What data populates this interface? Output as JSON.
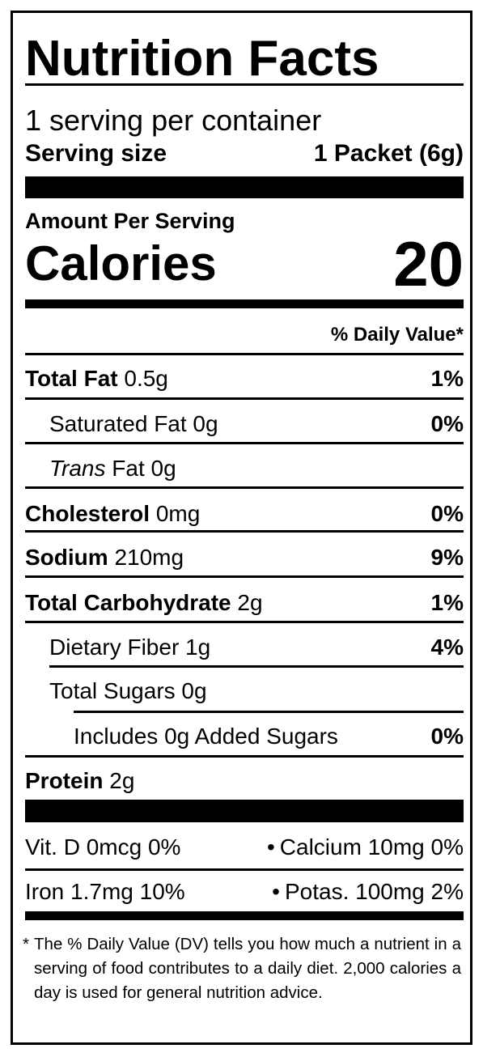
{
  "title": "Nutrition Facts",
  "servings": "1 serving per container",
  "serving_size": {
    "label": "Serving size",
    "value": "1 Packet (6g)"
  },
  "amount_per_serving": "Amount Per Serving",
  "calories": {
    "label": "Calories",
    "value": 20
  },
  "daily_value_header": "% Daily Value*",
  "nutrients": [
    {
      "name": "Total Fat",
      "amount": "0.5g",
      "dv": "1%"
    },
    {
      "name": "Saturated Fat 0g",
      "dv": "0%"
    },
    {
      "name_italic": "Trans",
      "name": "Fat 0g"
    },
    {
      "name": "Cholesterol",
      "amount": "0mg",
      "dv": "0%"
    },
    {
      "name": "Sodium",
      "amount": "210mg",
      "dv": "9%"
    },
    {
      "name": "Total Carbohydrate",
      "amount": "2g",
      "dv": "1%"
    },
    {
      "name": "Dietary Fiber 1g",
      "dv": "4%"
    },
    {
      "name": "Total Sugars 0g"
    },
    {
      "name": "Includes 0g Added Sugars",
      "dv": "0%"
    },
    {
      "name": "Protein",
      "amount": "2g"
    }
  ],
  "vitamins": [
    [
      "Vit. D 0mcg 0%",
      "Calcium 10mg 0%"
    ],
    [
      "Iron 1.7mg 10%",
      "Potas. 100mg 2%"
    ]
  ],
  "footnote": {
    "mark": "*",
    "text": "The % Daily Value (DV) tells you how much a nutrient in a serving of food contributes to a daily diet. 2,000 calories a day is used for general nutrition advice."
  }
}
